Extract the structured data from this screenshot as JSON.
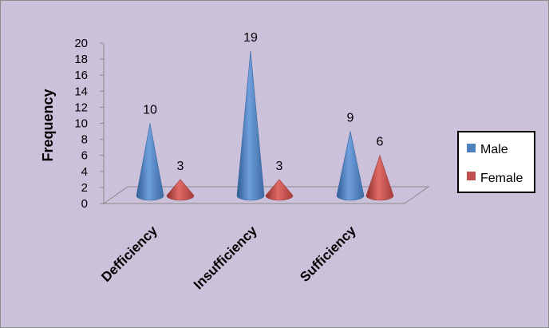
{
  "chart_data": {
    "type": "bar",
    "style": "3d-cone",
    "ylabel": "Frequency",
    "xlabel": "",
    "ylim": [
      0,
      20
    ],
    "yticks": [
      0,
      2,
      4,
      6,
      8,
      10,
      12,
      14,
      16,
      18,
      20
    ],
    "categories": [
      "Defficiency",
      "Insufficiency",
      "Sufficiency"
    ],
    "series": [
      {
        "name": "Male",
        "values": [
          10,
          19,
          9
        ],
        "color": "#4f81bd"
      },
      {
        "name": "Female",
        "values": [
          3,
          3,
          6
        ],
        "color": "#c0504d"
      }
    ],
    "legend_position": "right",
    "background_color": "#ccc1da",
    "data_labels": true
  }
}
